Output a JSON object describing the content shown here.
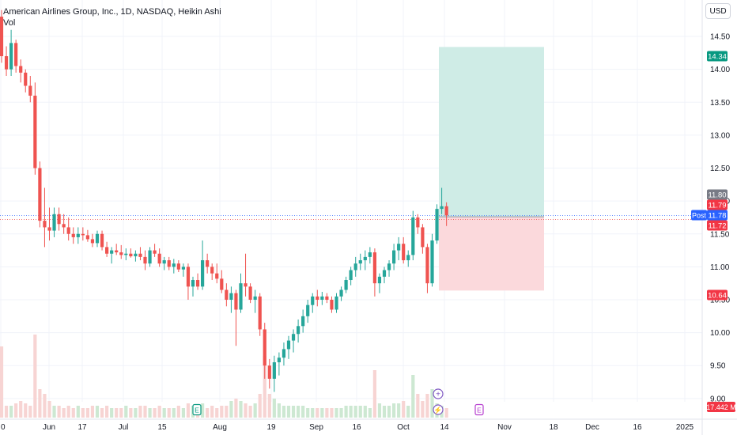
{
  "header": {
    "title": "American Airlines Group, Inc., 1D, NASDAQ, Heikin Ashi",
    "indicator": "Vol"
  },
  "currency": "USD",
  "colors": {
    "up": "#26a69a",
    "down": "#ef5350",
    "vol_up": "#cde8d2",
    "vol_down": "#f7d4d3",
    "target_zone": "#cfece6",
    "stop_zone": "#fbd9dc",
    "post_label": "#2962ff"
  },
  "chart_data": {
    "type": "candlestick",
    "chart_style": "Heikin Ashi",
    "y_axis": {
      "ticks": [
        "14.50",
        "14.00",
        "13.50",
        "13.00",
        "12.50",
        "12.00",
        "11.50",
        "11.00",
        "10.50",
        "10.00",
        "9.50",
        "9.00"
      ],
      "ylim": [
        8.95,
        14.95
      ]
    },
    "x_axis": {
      "ticks": [
        "0",
        "Jun",
        "17",
        "Jul",
        "15",
        "Aug",
        "19",
        "Sep",
        "16",
        "Oct",
        "14",
        "Nov",
        "18",
        "Dec",
        "16",
        "2025"
      ]
    },
    "price_labels": [
      {
        "text": "14.34",
        "value": 14.34,
        "style": "green"
      },
      {
        "text": "11.80",
        "value": 11.8,
        "style": "gray"
      },
      {
        "text": "11.79",
        "value": 11.79,
        "style": "red"
      },
      {
        "text": "11.78",
        "value": 11.78,
        "style": "blue",
        "tag": "Post"
      },
      {
        "text": "11.72",
        "value": 11.72,
        "style": "red"
      },
      {
        "text": "10.64",
        "value": 10.64,
        "style": "red"
      }
    ],
    "volume_label": "17.442 M",
    "position_tool": {
      "entry": 11.76,
      "target": 14.34,
      "stop": 10.64
    },
    "events": [
      "E",
      "E",
      "E"
    ],
    "candles": [
      [
        14.8,
        14.9,
        14.1,
        14.2
      ],
      [
        14.2,
        14.35,
        13.9,
        14.0
      ],
      [
        14.0,
        14.6,
        13.9,
        14.4
      ],
      [
        14.4,
        14.45,
        13.95,
        14.05
      ],
      [
        14.05,
        14.15,
        13.8,
        13.95
      ],
      [
        13.95,
        14.0,
        13.65,
        13.75
      ],
      [
        13.75,
        13.9,
        13.5,
        13.6
      ],
      [
        13.6,
        13.8,
        12.4,
        12.5
      ],
      [
        12.5,
        12.6,
        11.6,
        11.7
      ],
      [
        11.7,
        12.2,
        11.3,
        11.6
      ],
      [
        11.6,
        11.9,
        11.4,
        11.55
      ],
      [
        11.55,
        11.9,
        11.45,
        11.8
      ],
      [
        11.8,
        11.9,
        11.55,
        11.65
      ],
      [
        11.65,
        11.8,
        11.5,
        11.6
      ],
      [
        11.6,
        11.75,
        11.4,
        11.5
      ],
      [
        11.5,
        11.6,
        11.35,
        11.45
      ],
      [
        11.45,
        11.6,
        11.35,
        11.5
      ],
      [
        11.5,
        11.6,
        11.4,
        11.48
      ],
      [
        11.48,
        11.56,
        11.38,
        11.42
      ],
      [
        11.42,
        11.5,
        11.3,
        11.36
      ],
      [
        11.36,
        11.55,
        11.3,
        11.5
      ],
      [
        11.5,
        11.55,
        11.25,
        11.3
      ],
      [
        11.3,
        11.38,
        11.15,
        11.2
      ],
      [
        11.2,
        11.3,
        11.05,
        11.25
      ],
      [
        11.25,
        11.35,
        11.18,
        11.22
      ],
      [
        11.22,
        11.33,
        11.12,
        11.18
      ],
      [
        11.18,
        11.28,
        11.1,
        11.2
      ],
      [
        11.2,
        11.28,
        11.14,
        11.16
      ],
      [
        11.16,
        11.25,
        11.08,
        11.2
      ],
      [
        11.2,
        11.3,
        11.1,
        11.15
      ],
      [
        11.15,
        11.25,
        10.95,
        11.05
      ],
      [
        11.05,
        11.3,
        11.0,
        11.25
      ],
      [
        11.25,
        11.35,
        11.15,
        11.2
      ],
      [
        11.2,
        11.28,
        11.0,
        11.05
      ],
      [
        11.05,
        11.15,
        10.95,
        11.1
      ],
      [
        11.1,
        11.15,
        10.95,
        11.0
      ],
      [
        11.0,
        11.12,
        10.9,
        11.05
      ],
      [
        11.05,
        11.1,
        10.92,
        10.96
      ],
      [
        10.96,
        11.05,
        10.85,
        11.0
      ],
      [
        11.0,
        11.05,
        10.5,
        10.7
      ],
      [
        10.7,
        10.85,
        10.55,
        10.8
      ],
      [
        10.8,
        10.9,
        10.65,
        10.7
      ],
      [
        10.7,
        11.4,
        10.65,
        11.1
      ],
      [
        11.1,
        11.2,
        10.9,
        11.0
      ],
      [
        11.0,
        11.05,
        10.8,
        10.9
      ],
      [
        10.9,
        11.05,
        10.75,
        10.82
      ],
      [
        10.82,
        10.95,
        10.6,
        10.65
      ],
      [
        10.65,
        10.75,
        10.4,
        10.5
      ],
      [
        10.5,
        10.7,
        10.3,
        10.6
      ],
      [
        10.6,
        10.65,
        9.8,
        10.35
      ],
      [
        10.35,
        10.9,
        10.3,
        10.75
      ],
      [
        10.75,
        11.2,
        10.55,
        10.7
      ],
      [
        10.7,
        10.75,
        10.45,
        10.5
      ],
      [
        10.5,
        10.65,
        10.3,
        10.55
      ],
      [
        10.55,
        10.6,
        9.95,
        10.05
      ],
      [
        10.05,
        10.15,
        9.3,
        9.5
      ],
      [
        9.5,
        9.6,
        9.15,
        9.3
      ],
      [
        9.3,
        9.65,
        9.1,
        9.55
      ],
      [
        9.55,
        9.7,
        9.35,
        9.62
      ],
      [
        9.62,
        9.85,
        9.5,
        9.75
      ],
      [
        9.75,
        9.95,
        9.6,
        9.88
      ],
      [
        9.88,
        10.05,
        9.7,
        9.98
      ],
      [
        9.98,
        10.2,
        9.85,
        10.1
      ],
      [
        10.1,
        10.35,
        10.0,
        10.25
      ],
      [
        10.25,
        10.5,
        10.15,
        10.42
      ],
      [
        10.42,
        10.6,
        10.3,
        10.55
      ],
      [
        10.55,
        10.65,
        10.4,
        10.5
      ],
      [
        10.5,
        10.62,
        10.42,
        10.55
      ],
      [
        10.55,
        10.6,
        10.45,
        10.5
      ],
      [
        10.5,
        10.55,
        10.3,
        10.35
      ],
      [
        10.35,
        10.6,
        10.3,
        10.55
      ],
      [
        10.55,
        10.7,
        10.48,
        10.65
      ],
      [
        10.65,
        10.85,
        10.6,
        10.8
      ],
      [
        10.8,
        11.0,
        10.72,
        10.95
      ],
      [
        10.95,
        11.15,
        10.85,
        11.05
      ],
      [
        11.05,
        11.2,
        10.95,
        11.1
      ],
      [
        11.1,
        11.25,
        10.95,
        11.15
      ],
      [
        11.15,
        11.3,
        11.05,
        11.22
      ],
      [
        11.22,
        11.28,
        10.55,
        10.75
      ],
      [
        10.75,
        10.9,
        10.6,
        10.85
      ],
      [
        10.85,
        11.0,
        10.75,
        10.95
      ],
      [
        10.95,
        11.1,
        10.85,
        11.05
      ],
      [
        11.05,
        11.35,
        10.95,
        11.25
      ],
      [
        11.25,
        11.45,
        11.1,
        11.35
      ],
      [
        11.35,
        11.45,
        11.05,
        11.1
      ],
      [
        11.1,
        11.25,
        11.0,
        11.18
      ],
      [
        11.18,
        11.85,
        11.1,
        11.75
      ],
      [
        11.75,
        11.8,
        11.5,
        11.6
      ],
      [
        11.6,
        11.65,
        11.2,
        11.3
      ],
      [
        11.3,
        11.35,
        10.6,
        10.75
      ],
      [
        10.75,
        11.5,
        10.7,
        11.4
      ],
      [
        11.4,
        11.95,
        11.35,
        11.88
      ],
      [
        11.88,
        12.2,
        11.8,
        11.92
      ],
      [
        11.92,
        11.98,
        11.62,
        11.78
      ]
    ],
    "volumes": [
      0.3,
      0.05,
      0.05,
      0.06,
      0.07,
      0.06,
      0.05,
      0.35,
      0.12,
      0.1,
      0.07,
      0.05,
      0.05,
      0.04,
      0.05,
      0.04,
      0.05,
      0.04,
      0.04,
      0.05,
      0.05,
      0.04,
      0.05,
      0.04,
      0.04,
      0.04,
      0.05,
      0.04,
      0.04,
      0.05,
      0.05,
      0.04,
      0.04,
      0.05,
      0.04,
      0.04,
      0.04,
      0.05,
      0.04,
      0.06,
      0.05,
      0.04,
      0.06,
      0.04,
      0.05,
      0.04,
      0.05,
      0.05,
      0.07,
      0.08,
      0.07,
      0.06,
      0.05,
      0.06,
      0.1,
      0.26,
      0.1,
      0.08,
      0.06,
      0.05,
      0.05,
      0.05,
      0.05,
      0.05,
      0.04,
      0.04,
      0.04,
      0.04,
      0.04,
      0.04,
      0.04,
      0.04,
      0.05,
      0.05,
      0.05,
      0.05,
      0.05,
      0.04,
      0.2,
      0.06,
      0.05,
      0.05,
      0.06,
      0.06,
      0.07,
      0.05,
      0.18,
      0.1,
      0.07,
      0.1,
      0.12,
      0.06,
      0.05,
      0.04
    ]
  }
}
